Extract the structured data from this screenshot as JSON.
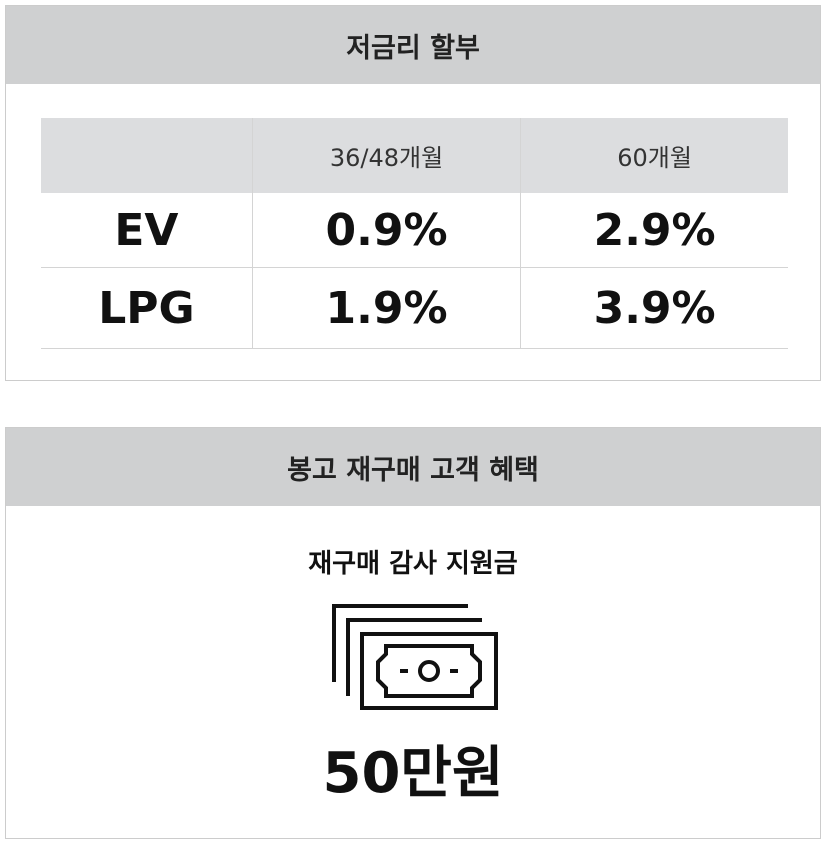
{
  "rate_section": {
    "title": "저금리 할부",
    "table": {
      "columns": [
        "",
        "36/48개월",
        "60개월"
      ],
      "rows": [
        [
          "EV",
          "0.9%",
          "2.9%"
        ],
        [
          "LPG",
          "1.9%",
          "3.9%"
        ]
      ]
    }
  },
  "benefit_section": {
    "title": "봉고 재구매 고객 혜택",
    "subtitle": "재구매 감사 지원금",
    "amount": "50만원"
  }
}
